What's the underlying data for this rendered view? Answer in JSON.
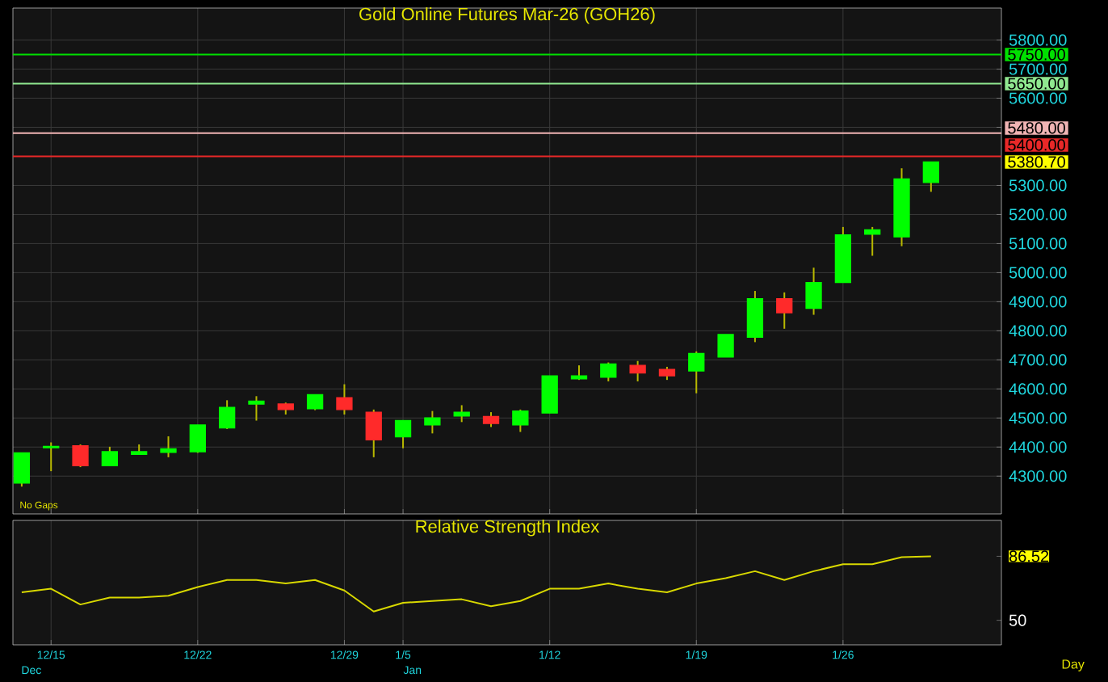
{
  "chart_data": [
    {
      "type": "candlestick",
      "title": "Gold Online Futures Mar-26 (GOH26)",
      "categories": [
        null,
        null,
        null,
        null,
        null,
        null,
        null,
        null,
        null,
        null,
        null,
        null,
        null,
        null,
        null,
        null,
        null,
        null,
        null,
        null,
        null,
        null,
        null,
        null,
        null,
        null,
        null,
        null,
        null,
        null,
        null,
        null
      ],
      "ohlc": [
        [
          4276,
          4380,
          4264,
          4380
        ],
        [
          4398,
          4416,
          4317,
          4402
        ],
        [
          4404,
          4409,
          4331,
          4336
        ],
        [
          4336,
          4401,
          4336,
          4384
        ],
        [
          4375,
          4409,
          4375,
          4384
        ],
        [
          4382,
          4437,
          4365,
          4394
        ],
        [
          4384,
          4476,
          4380,
          4476
        ],
        [
          4466,
          4561,
          4462,
          4536
        ],
        [
          4548,
          4575,
          4491,
          4558
        ],
        [
          4548,
          4553,
          4512,
          4529
        ],
        [
          4532,
          4580,
          4527,
          4580
        ],
        [
          4570,
          4616,
          4512,
          4529
        ],
        [
          4520,
          4529,
          4365,
          4425
        ],
        [
          4435,
          4491,
          4396,
          4491
        ],
        [
          4476,
          4524,
          4447,
          4500
        ],
        [
          4507,
          4544,
          4486,
          4520
        ],
        [
          4505,
          4520,
          4469,
          4481
        ],
        [
          4476,
          4529,
          4452,
          4524
        ],
        [
          4517,
          4645,
          4517,
          4645
        ],
        [
          4635,
          4681,
          4631,
          4645
        ],
        [
          4640,
          4691,
          4626,
          4686
        ],
        [
          4681,
          4696,
          4626,
          4655
        ],
        [
          4667,
          4676,
          4631,
          4645
        ],
        [
          4662,
          4729,
          4585,
          4722
        ],
        [
          4710,
          4787,
          4710,
          4787
        ],
        [
          4778,
          4937,
          4761,
          4910
        ],
        [
          4910,
          4932,
          4807,
          4862
        ],
        [
          4877,
          5017,
          4855,
          4966
        ],
        [
          4966,
          5157,
          4966,
          5130
        ],
        [
          5132,
          5157,
          5058,
          5147
        ],
        [
          5123,
          5359,
          5091,
          5322
        ],
        [
          5310,
          5381,
          5278,
          5380.7
        ]
      ],
      "colors": [
        "#00ff00",
        "#00ff00",
        "#ff2a2a",
        "#00ff00",
        "#00ff00",
        "#00ff00",
        "#00ff00",
        "#00ff00",
        "#00ff00",
        "#ff2a2a",
        "#00ff00",
        "#ff2a2a",
        "#ff2a2a",
        "#00ff00",
        "#00ff00",
        "#00ff00",
        "#ff2a2a",
        "#00ff00",
        "#00ff00",
        "#00ff00",
        "#00ff00",
        "#ff2a2a",
        "#ff2a2a",
        "#00ff00",
        "#00ff00",
        "#00ff00",
        "#ff2a2a",
        "#00ff00",
        "#00ff00",
        "#00ff00",
        "#00ff00",
        "#00ff00"
      ],
      "ylim": [
        4170,
        5910
      ],
      "yticks": [
        {
          "value": 4300,
          "label": "4300.00"
        },
        {
          "value": 4400,
          "label": "4400.00"
        },
        {
          "value": 4500,
          "label": "4500.00"
        },
        {
          "value": 4600,
          "label": "4600.00"
        },
        {
          "value": 4700,
          "label": "4700.00"
        },
        {
          "value": 4800,
          "label": "4800.00"
        },
        {
          "value": 4900,
          "label": "4900.00"
        },
        {
          "value": 5000,
          "label": "5000.00"
        },
        {
          "value": 5100,
          "label": "5100.00"
        },
        {
          "value": 5200,
          "label": "5200.00"
        },
        {
          "value": 5300,
          "label": "5300.00"
        },
        {
          "value": 5400,
          "label": null
        },
        {
          "value": 5500,
          "label": null
        },
        {
          "value": 5600,
          "label": "5600.00"
        },
        {
          "value": 5700,
          "label": "5700.00"
        },
        {
          "value": 5800,
          "label": "5800.00"
        }
      ],
      "grid": true,
      "tick_labels": "y",
      "ref_lines": [
        {
          "axis": "y",
          "value": 5750,
          "label": "5750.00",
          "color": "#00e000"
        },
        {
          "axis": "y",
          "value": 5650,
          "label": "5650.00",
          "color": "#90e890"
        },
        {
          "axis": "y",
          "value": 5480,
          "label": "5480.00",
          "color": "#f0b4b4"
        },
        {
          "axis": "y",
          "value": 5400,
          "label": "5400.00",
          "color": "#e82828"
        }
      ],
      "annotations": [
        "No Gaps",
        "5380.70"
      ]
    },
    {
      "type": "line",
      "title": "Relative Strength Index",
      "categories": [
        null,
        "12/15",
        null,
        null,
        null,
        null,
        "12/22",
        null,
        null,
        null,
        null,
        "12/29",
        null,
        "1/5",
        null,
        null,
        null,
        null,
        "1/12",
        null,
        null,
        null,
        null,
        "1/19",
        null,
        null,
        null,
        null,
        "1/26",
        null,
        null,
        null
      ],
      "series": [
        {
          "color": "#d8d800",
          "values": [
            66,
            68,
            59,
            63,
            63,
            64,
            69,
            73,
            73,
            71,
            73,
            67,
            55,
            60,
            61,
            62,
            58,
            61,
            68,
            68,
            71,
            68,
            66,
            71,
            74,
            78,
            73,
            78,
            82,
            82,
            86,
            86.52
          ]
        }
      ],
      "ylim": [
        36,
        107
      ],
      "yticks": [
        50,
        {
          "value": 86.52,
          "label": "86.52"
        }
      ],
      "grid": "x",
      "annotations": [
        "Dec",
        "Jan",
        "Day"
      ]
    }
  ]
}
